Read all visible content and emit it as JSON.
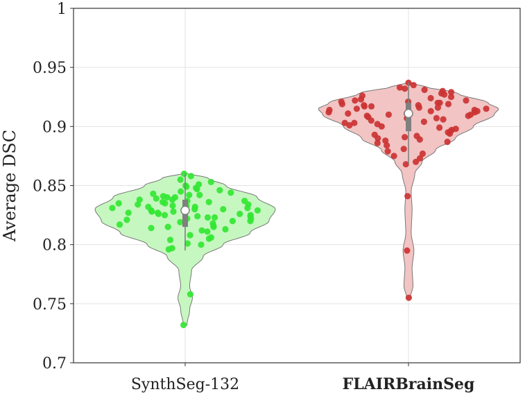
{
  "chart_data": {
    "type": "violin",
    "title": "",
    "xlabel": "",
    "ylabel": "Average DSC",
    "ylim": [
      0.7,
      1.0
    ],
    "yticks": [
      "0.7",
      "0.75",
      "0.8",
      "0.85",
      "0.9",
      "0.95",
      "1"
    ],
    "grid": true,
    "legend": "none",
    "categories": [
      "SynthSeg-132",
      "FLAIRBrainSeg"
    ],
    "series": [
      {
        "category": "SynthSeg-132",
        "bold_label": false,
        "fill_color": "#c6f7c0",
        "point_color": "#33e633",
        "median": 0.829,
        "q1": 0.815,
        "q3": 0.838,
        "whisker_low": 0.795,
        "whisker_high": 0.86,
        "density": [
          [
            0.732,
            0.02
          ],
          [
            0.745,
            0.05
          ],
          [
            0.755,
            0.08
          ],
          [
            0.765,
            0.05
          ],
          [
            0.778,
            0.07
          ],
          [
            0.79,
            0.2
          ],
          [
            0.8,
            0.42
          ],
          [
            0.81,
            0.72
          ],
          [
            0.82,
            0.93
          ],
          [
            0.83,
            1.0
          ],
          [
            0.84,
            0.8
          ],
          [
            0.85,
            0.45
          ],
          [
            0.856,
            0.26
          ],
          [
            0.861,
            0.0
          ]
        ],
        "values": [
          0.732,
          0.758,
          0.797,
          0.796,
          0.8,
          0.801,
          0.804,
          0.805,
          0.806,
          0.808,
          0.811,
          0.812,
          0.813,
          0.814,
          0.815,
          0.815,
          0.816,
          0.817,
          0.818,
          0.819,
          0.82,
          0.82,
          0.821,
          0.822,
          0.822,
          0.823,
          0.823,
          0.824,
          0.824,
          0.825,
          0.825,
          0.826,
          0.826,
          0.827,
          0.827,
          0.828,
          0.828,
          0.829,
          0.829,
          0.83,
          0.83,
          0.831,
          0.831,
          0.832,
          0.832,
          0.833,
          0.833,
          0.834,
          0.834,
          0.835,
          0.835,
          0.836,
          0.836,
          0.837,
          0.837,
          0.838,
          0.838,
          0.839,
          0.84,
          0.84,
          0.841,
          0.842,
          0.842,
          0.843,
          0.844,
          0.845,
          0.846,
          0.847,
          0.848,
          0.849,
          0.85,
          0.851,
          0.853,
          0.855,
          0.858,
          0.86
        ]
      },
      {
        "category": "FLAIRBrainSeg",
        "bold_label": true,
        "fill_color": "#f2c4c4",
        "point_color": "#cc3333",
        "median": 0.911,
        "q1": 0.896,
        "q3": 0.92,
        "whisker_low": 0.868,
        "whisker_high": 0.937,
        "density": [
          [
            0.755,
            0.02
          ],
          [
            0.765,
            0.05
          ],
          [
            0.78,
            0.04
          ],
          [
            0.795,
            0.06
          ],
          [
            0.81,
            0.03
          ],
          [
            0.83,
            0.04
          ],
          [
            0.845,
            0.03
          ],
          [
            0.86,
            0.07
          ],
          [
            0.87,
            0.15
          ],
          [
            0.88,
            0.3
          ],
          [
            0.89,
            0.52
          ],
          [
            0.9,
            0.72
          ],
          [
            0.91,
            0.95
          ],
          [
            0.915,
            1.0
          ],
          [
            0.92,
            0.88
          ],
          [
            0.928,
            0.55
          ],
          [
            0.934,
            0.18
          ],
          [
            0.937,
            0.0
          ]
        ],
        "values": [
          0.755,
          0.795,
          0.841,
          0.868,
          0.87,
          0.873,
          0.875,
          0.877,
          0.879,
          0.881,
          0.884,
          0.886,
          0.887,
          0.888,
          0.889,
          0.89,
          0.891,
          0.892,
          0.893,
          0.894,
          0.895,
          0.896,
          0.897,
          0.898,
          0.899,
          0.9,
          0.901,
          0.902,
          0.903,
          0.903,
          0.904,
          0.905,
          0.906,
          0.907,
          0.907,
          0.908,
          0.909,
          0.909,
          0.91,
          0.91,
          0.911,
          0.911,
          0.912,
          0.912,
          0.913,
          0.913,
          0.914,
          0.914,
          0.915,
          0.915,
          0.916,
          0.916,
          0.917,
          0.917,
          0.918,
          0.918,
          0.919,
          0.919,
          0.92,
          0.92,
          0.921,
          0.921,
          0.922,
          0.922,
          0.923,
          0.924,
          0.925,
          0.926,
          0.927,
          0.928,
          0.929,
          0.93,
          0.931,
          0.932,
          0.933,
          0.935,
          0.937
        ]
      }
    ]
  }
}
